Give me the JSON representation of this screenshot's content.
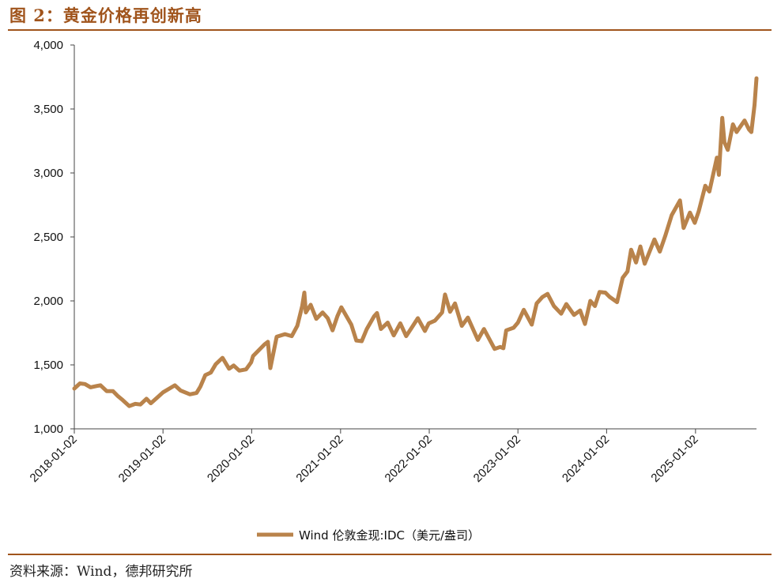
{
  "figure": {
    "title": "图 2：黄金价格再创新高",
    "source": "资料来源：Wind，德邦研究所"
  },
  "colors": {
    "accent": "#a0541c",
    "line": "#b9834b",
    "axis": "#444444"
  },
  "chart_data": {
    "type": "line",
    "title": "",
    "xlabel": "",
    "ylabel": "",
    "ylim": [
      1000,
      4000
    ],
    "yticks": [
      1000,
      1500,
      2000,
      2500,
      3000,
      3500,
      4000
    ],
    "ytick_labels": [
      "1,000",
      "1,500",
      "2,000",
      "2,500",
      "3,000",
      "3,500",
      "4,000"
    ],
    "xlim": [
      "2018-01-02",
      "2025-09-10"
    ],
    "xtick_labels": [
      "2018-01-02",
      "2019-01-02",
      "2020-01-02",
      "2021-01-02",
      "2022-01-02",
      "2023-01-02",
      "2024-01-02",
      "2025-01-02"
    ],
    "grid": false,
    "legend_position": "bottom-center",
    "series": [
      {
        "name": "Wind 伦敦金现:IDC（美元/盎司）",
        "points": [
          [
            "2018-01-02",
            1315
          ],
          [
            "2018-01-25",
            1355
          ],
          [
            "2018-02-15",
            1350
          ],
          [
            "2018-03-10",
            1325
          ],
          [
            "2018-04-05",
            1335
          ],
          [
            "2018-04-20",
            1340
          ],
          [
            "2018-05-15",
            1295
          ],
          [
            "2018-06-10",
            1295
          ],
          [
            "2018-07-01",
            1255
          ],
          [
            "2018-07-20",
            1225
          ],
          [
            "2018-08-16",
            1178
          ],
          [
            "2018-09-10",
            1195
          ],
          [
            "2018-10-01",
            1190
          ],
          [
            "2018-10-26",
            1235
          ],
          [
            "2018-11-13",
            1200
          ],
          [
            "2018-12-10",
            1245
          ],
          [
            "2019-01-02",
            1285
          ],
          [
            "2019-02-20",
            1340
          ],
          [
            "2019-03-15",
            1300
          ],
          [
            "2019-04-23",
            1270
          ],
          [
            "2019-05-20",
            1280
          ],
          [
            "2019-06-05",
            1330
          ],
          [
            "2019-06-25",
            1420
          ],
          [
            "2019-07-18",
            1440
          ],
          [
            "2019-08-07",
            1505
          ],
          [
            "2019-09-04",
            1555
          ],
          [
            "2019-10-01",
            1470
          ],
          [
            "2019-10-20",
            1495
          ],
          [
            "2019-11-12",
            1455
          ],
          [
            "2019-12-10",
            1465
          ],
          [
            "2019-12-31",
            1520
          ],
          [
            "2020-01-08",
            1570
          ],
          [
            "2020-02-24",
            1660
          ],
          [
            "2020-03-09",
            1680
          ],
          [
            "2020-03-19",
            1475
          ],
          [
            "2020-04-14",
            1720
          ],
          [
            "2020-05-18",
            1740
          ],
          [
            "2020-06-15",
            1725
          ],
          [
            "2020-07-08",
            1805
          ],
          [
            "2020-07-28",
            1960
          ],
          [
            "2020-08-06",
            2065
          ],
          [
            "2020-08-12",
            1910
          ],
          [
            "2020-09-01",
            1970
          ],
          [
            "2020-09-24",
            1860
          ],
          [
            "2020-10-20",
            1910
          ],
          [
            "2020-11-10",
            1865
          ],
          [
            "2020-11-30",
            1770
          ],
          [
            "2020-12-20",
            1880
          ],
          [
            "2021-01-05",
            1950
          ],
          [
            "2021-02-15",
            1815
          ],
          [
            "2021-03-08",
            1690
          ],
          [
            "2021-03-30",
            1685
          ],
          [
            "2021-04-20",
            1780
          ],
          [
            "2021-05-20",
            1880
          ],
          [
            "2021-06-01",
            1905
          ],
          [
            "2021-06-17",
            1780
          ],
          [
            "2021-07-15",
            1830
          ],
          [
            "2021-08-09",
            1730
          ],
          [
            "2021-09-05",
            1825
          ],
          [
            "2021-09-29",
            1725
          ],
          [
            "2021-10-20",
            1785
          ],
          [
            "2021-11-16",
            1865
          ],
          [
            "2021-12-15",
            1765
          ],
          [
            "2021-12-31",
            1825
          ],
          [
            "2022-01-25",
            1845
          ],
          [
            "2022-02-24",
            1910
          ],
          [
            "2022-03-08",
            2050
          ],
          [
            "2022-03-29",
            1915
          ],
          [
            "2022-04-18",
            1980
          ],
          [
            "2022-05-16",
            1805
          ],
          [
            "2022-06-10",
            1870
          ],
          [
            "2022-07-21",
            1695
          ],
          [
            "2022-08-15",
            1780
          ],
          [
            "2022-09-28",
            1625
          ],
          [
            "2022-10-21",
            1640
          ],
          [
            "2022-11-03",
            1630
          ],
          [
            "2022-11-15",
            1770
          ],
          [
            "2022-12-15",
            1790
          ],
          [
            "2023-01-02",
            1830
          ],
          [
            "2023-01-26",
            1930
          ],
          [
            "2023-02-28",
            1815
          ],
          [
            "2023-03-20",
            1980
          ],
          [
            "2023-04-13",
            2030
          ],
          [
            "2023-05-04",
            2055
          ],
          [
            "2023-05-30",
            1960
          ],
          [
            "2023-06-29",
            1900
          ],
          [
            "2023-07-20",
            1975
          ],
          [
            "2023-08-21",
            1890
          ],
          [
            "2023-09-15",
            1925
          ],
          [
            "2023-10-05",
            1820
          ],
          [
            "2023-10-27",
            2000
          ],
          [
            "2023-11-15",
            1960
          ],
          [
            "2023-12-04",
            2070
          ],
          [
            "2023-12-28",
            2065
          ],
          [
            "2024-01-15",
            2030
          ],
          [
            "2024-02-14",
            1990
          ],
          [
            "2024-03-08",
            2180
          ],
          [
            "2024-03-28",
            2230
          ],
          [
            "2024-04-12",
            2400
          ],
          [
            "2024-05-02",
            2300
          ],
          [
            "2024-05-20",
            2425
          ],
          [
            "2024-06-07",
            2290
          ],
          [
            "2024-07-17",
            2480
          ],
          [
            "2024-08-08",
            2385
          ],
          [
            "2024-08-30",
            2505
          ],
          [
            "2024-09-26",
            2670
          ],
          [
            "2024-10-30",
            2785
          ],
          [
            "2024-11-14",
            2570
          ],
          [
            "2024-12-10",
            2690
          ],
          [
            "2024-12-30",
            2610
          ],
          [
            "2025-01-15",
            2700
          ],
          [
            "2025-02-11",
            2900
          ],
          [
            "2025-02-28",
            2855
          ],
          [
            "2025-03-31",
            3120
          ],
          [
            "2025-04-08",
            2985
          ],
          [
            "2025-04-22",
            3430
          ],
          [
            "2025-05-01",
            3240
          ],
          [
            "2025-05-15",
            3180
          ],
          [
            "2025-06-05",
            3380
          ],
          [
            "2025-06-20",
            3320
          ],
          [
            "2025-07-23",
            3410
          ],
          [
            "2025-08-10",
            3340
          ],
          [
            "2025-08-20",
            3320
          ],
          [
            "2025-09-02",
            3530
          ],
          [
            "2025-09-10",
            3740
          ]
        ]
      }
    ]
  }
}
